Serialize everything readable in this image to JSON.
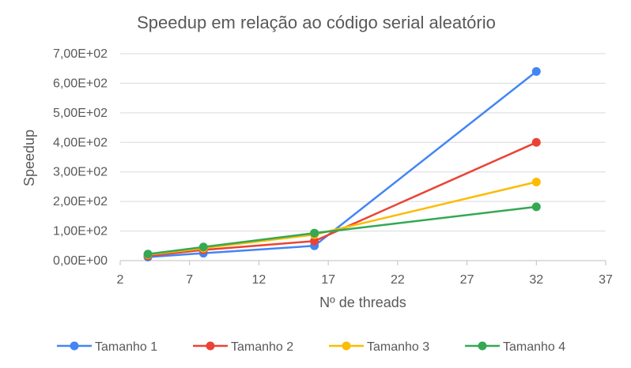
{
  "chart_data": {
    "type": "scatter",
    "title": "Speedup em relação ao código serial aleatório",
    "xlabel": "Nº de threads",
    "ylabel": "Speedup",
    "xlim": [
      2,
      37
    ],
    "ylim": [
      0,
      700
    ],
    "x_ticks": [
      "2",
      "7",
      "12",
      "17",
      "22",
      "27",
      "32",
      "37"
    ],
    "y_ticks": [
      "0,00E+00",
      "1,00E+02",
      "2,00E+02",
      "3,00E+02",
      "4,00E+02",
      "5,00E+02",
      "6,00E+02",
      "7,00E+02"
    ],
    "grid": "horizontal",
    "legend_position": "bottom",
    "x": [
      4,
      8,
      16,
      32
    ],
    "series": [
      {
        "name": "Tamanho 1",
        "color": "#4285F4",
        "values": [
          12,
          25,
          50,
          640
        ]
      },
      {
        "name": "Tamanho 2",
        "color": "#EA4335",
        "values": [
          16,
          36,
          66,
          400
        ]
      },
      {
        "name": "Tamanho 3",
        "color": "#FBBC04",
        "values": [
          20,
          42,
          88,
          266
        ]
      },
      {
        "name": "Tamanho 4",
        "color": "#34A853",
        "values": [
          22,
          46,
          93,
          182
        ]
      }
    ]
  }
}
